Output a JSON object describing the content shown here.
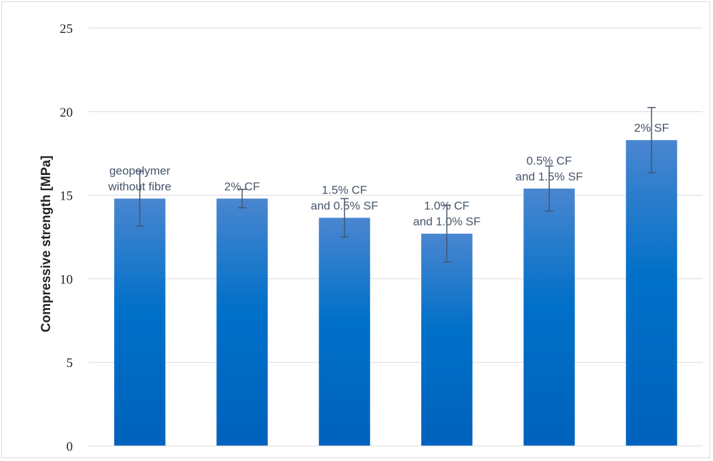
{
  "chart_data": {
    "type": "bar",
    "title": "",
    "xlabel": "",
    "ylabel": "Compressive strength [MPa]",
    "ylim": [
      0,
      25
    ],
    "yticks": [
      0,
      5,
      10,
      15,
      20,
      25
    ],
    "grid": true,
    "legend": "none",
    "categories": [
      {
        "line1": "geopolymer",
        "line2": "without fibre"
      },
      {
        "line1": "2% CF",
        "line2": ""
      },
      {
        "line1": "1.5% CF",
        "line2": "and 0.5% SF"
      },
      {
        "line1": "1.0% CF",
        "line2": "and 1.0% SF"
      },
      {
        "line1": "0.5% CF",
        "line2": "and 1.5% SF"
      },
      {
        "line1": "2% SF",
        "line2": ""
      }
    ],
    "values": [
      14.8,
      14.8,
      13.65,
      12.7,
      15.4,
      18.3
    ],
    "errors": [
      1.65,
      0.55,
      1.15,
      1.7,
      1.35,
      1.95
    ],
    "colors": {
      "bar_top": "#4a86d0",
      "bar_mid": "#0070c8",
      "bar_bottom": "#0062bd",
      "error_bar": "#44546a",
      "grid": "#d9d9d9",
      "axis": "#d9d9d9"
    }
  }
}
